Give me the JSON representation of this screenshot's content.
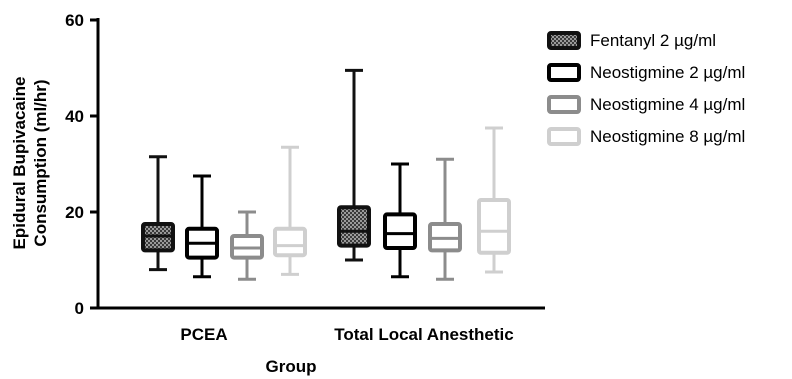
{
  "chart_data": {
    "type": "box",
    "xlabel": "Group",
    "ylabel_line1": "Epidural  Bupivacaine",
    "ylabel_line2": "Consumption  (ml/hr)",
    "ylim": [
      0,
      60
    ],
    "yticks": [
      "0",
      "20",
      "40",
      "60"
    ],
    "categories": [
      "PCEA",
      "Total Local Anesthetic"
    ],
    "grid": false,
    "legend_position": "right",
    "series": [
      {
        "name": "Fentanyl 2 µg/ml",
        "color": "#111111",
        "pattern": "checker",
        "boxes": [
          {
            "min": 8,
            "q1": 12,
            "median": 15,
            "q3": 17.5,
            "max": 31.5
          },
          {
            "min": 10,
            "q1": 13,
            "median": 16,
            "q3": 21,
            "max": 49.5
          }
        ]
      },
      {
        "name": "Neostigmine 2 µg/ml",
        "color": "#000000",
        "pattern": "none",
        "boxes": [
          {
            "min": 6.5,
            "q1": 10.5,
            "median": 13.5,
            "q3": 16.5,
            "max": 27.5
          },
          {
            "min": 6.5,
            "q1": 12.5,
            "median": 15.5,
            "q3": 19.5,
            "max": 30
          }
        ]
      },
      {
        "name": "Neostigmine 4 µg/ml",
        "color": "#8c8c8c",
        "pattern": "none",
        "boxes": [
          {
            "min": 6,
            "q1": 10.5,
            "median": 12.5,
            "q3": 15,
            "max": 20
          },
          {
            "min": 6,
            "q1": 12,
            "median": 14.5,
            "q3": 17.5,
            "max": 31
          }
        ]
      },
      {
        "name": "Neostigmine 8 µg/ml",
        "color": "#cfcfcf",
        "pattern": "none",
        "boxes": [
          {
            "min": 7,
            "q1": 11,
            "median": 13,
            "q3": 16.5,
            "max": 33.5
          },
          {
            "min": 7.5,
            "q1": 11.5,
            "median": 16,
            "q3": 22.5,
            "max": 37.5
          }
        ]
      }
    ]
  }
}
